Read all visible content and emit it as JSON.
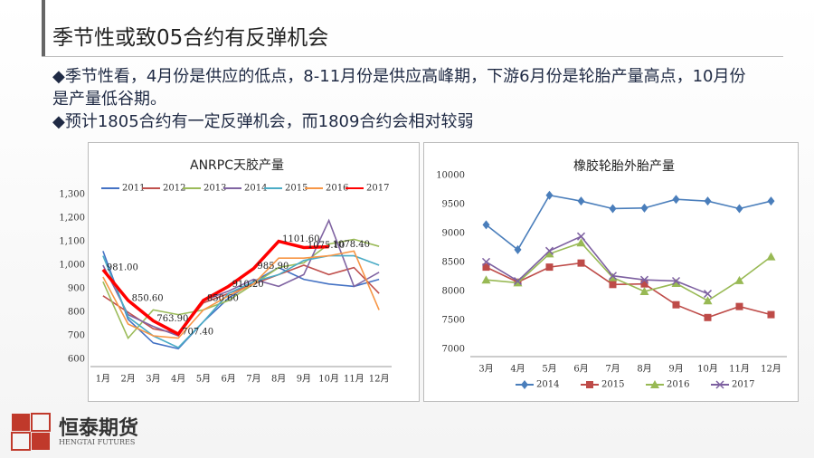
{
  "header": {
    "title": "季节性或致05合约有反弹机会"
  },
  "bullets": [
    "季节性看，4月份是供应的低点，8-11月份是供应高峰期，下游6月份是轮胎产量高点，10月份是产量低谷期。",
    "预计1805合约有一定反弹机会，而1809合约会相对较弱"
  ],
  "logo": {
    "name": "恒泰期货",
    "subtitle": "HENGTAI FUTURES"
  },
  "chart_data": [
    {
      "type": "line",
      "title": "ANRPC天胶产量",
      "legend": "top",
      "categories": [
        "1月",
        "2月",
        "3月",
        "4月",
        "5月",
        "6月",
        "7月",
        "8月",
        "9月",
        "10月",
        "11月",
        "12月"
      ],
      "ylim": [
        600,
        1300
      ],
      "yticks": [
        {
          "value": 600,
          "label": "600"
        },
        {
          "value": 700,
          "label": "700"
        },
        {
          "value": 800,
          "label": "800"
        },
        {
          "value": 900,
          "label": "900"
        },
        {
          "value": 1000,
          "label": "1,000"
        },
        {
          "value": 1100,
          "label": "1,100"
        },
        {
          "value": 1200,
          "label": "1,200"
        },
        {
          "value": 1300,
          "label": "1,300"
        }
      ],
      "grid": false,
      "series": [
        {
          "name": "2011",
          "color": "#4472c4",
          "marker": "none",
          "values": [
            1060,
            770,
            670,
            645,
            760,
            860,
            930,
            990,
            940,
            920,
            910,
            940
          ]
        },
        {
          "name": "2012",
          "color": "#c0504d",
          "marker": "none",
          "values": [
            870,
            800,
            730,
            710,
            840,
            880,
            920,
            960,
            1000,
            960,
            990,
            880
          ]
        },
        {
          "name": "2013",
          "color": "#9bbb59",
          "marker": "none",
          "values": [
            930,
            690,
            810,
            790,
            810,
            850,
            920,
            990,
            1010,
            1090,
            1110,
            1080
          ]
        },
        {
          "name": "2014",
          "color": "#8064a2",
          "marker": "none",
          "values": [
            1000,
            790,
            740,
            700,
            850,
            890,
            940,
            910,
            960,
            1190,
            910,
            970
          ]
        },
        {
          "name": "2015",
          "color": "#4bacc6",
          "marker": "none",
          "values": [
            1040,
            780,
            700,
            650,
            760,
            880,
            930,
            960,
            1020,
            1040,
            1040,
            1000
          ]
        },
        {
          "name": "2016",
          "color": "#f79646",
          "marker": "none",
          "values": [
            950,
            750,
            700,
            690,
            810,
            870,
            920,
            1030,
            1030,
            1040,
            1060,
            810
          ]
        },
        {
          "name": "2017",
          "color": "#ff0000",
          "marker": "none",
          "values": [
            981,
            850.6,
            763.9,
            707.4,
            850.6,
            910.2,
            985.9,
            1101.6,
            1075.1,
            1078.4,
            null,
            null
          ],
          "value_labels": [
            "981.00",
            "850.60",
            "763.90",
            "707.40",
            "850.60",
            "910.20",
            "985.90",
            "1101.60",
            "1075.10",
            "1078.40",
            null,
            null
          ]
        }
      ]
    },
    {
      "type": "line",
      "title": "橡胶轮胎外胎产量",
      "legend": "bottom",
      "categories": [
        "3月",
        "4月",
        "5月",
        "6月",
        "7月",
        "8月",
        "9月",
        "10月",
        "11月",
        "12月"
      ],
      "ylim": [
        7000,
        10000
      ],
      "yticks": [
        7000,
        7500,
        8000,
        8500,
        9000,
        9500,
        10000
      ],
      "grid": false,
      "series": [
        {
          "name": "2014",
          "color": "#4a7ebb",
          "marker": "diamond",
          "values": [
            9150,
            8720,
            9660,
            9560,
            9430,
            9440,
            9590,
            9560,
            9430,
            9560
          ]
        },
        {
          "name": "2015",
          "color": "#be4b48",
          "marker": "square",
          "values": [
            8420,
            8160,
            8420,
            8490,
            8120,
            8130,
            7770,
            7550,
            7740,
            7600
          ]
        },
        {
          "name": "2016",
          "color": "#98b954",
          "marker": "triangle",
          "values": [
            8200,
            8150,
            8650,
            8840,
            8240,
            8000,
            8140,
            7840,
            8190,
            8600
          ]
        },
        {
          "name": "2017",
          "color": "#7d60a0",
          "marker": "x",
          "values": [
            8510,
            8180,
            8700,
            8950,
            8270,
            8200,
            8180,
            7960,
            null,
            null
          ]
        }
      ]
    }
  ]
}
